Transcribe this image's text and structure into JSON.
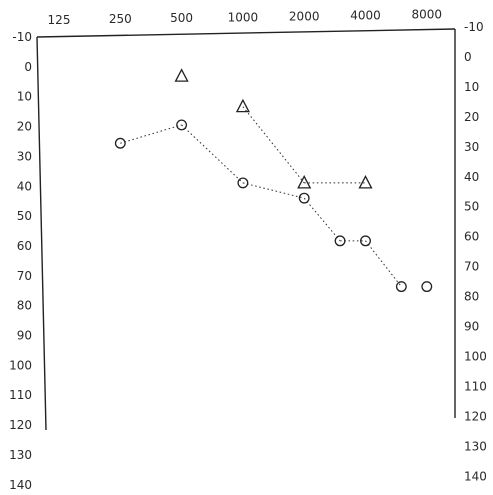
{
  "chart_data": {
    "type": "scatter",
    "title": "",
    "xlabel": "",
    "ylabel": "",
    "x_scale": "log",
    "x_ticks": [
      125,
      250,
      500,
      1000,
      2000,
      4000,
      8000
    ],
    "y_ticks": [
      -10,
      0,
      10,
      20,
      30,
      40,
      50,
      60,
      70,
      80,
      90,
      100,
      110,
      120,
      130,
      140
    ],
    "y_inverted": true,
    "grid": false,
    "series": [
      {
        "marker": "circle",
        "points": [
          {
            "x": 250,
            "y": 25
          },
          {
            "x": 500,
            "y": 19
          },
          {
            "x": 1000,
            "y": 38
          },
          {
            "x": 2000,
            "y": 43
          },
          {
            "x": 3000,
            "y": 57
          },
          {
            "x": 4000,
            "y": 57
          },
          {
            "x": 6000,
            "y": 72
          },
          {
            "x": 8000,
            "y": 72
          }
        ],
        "connections": [
          [
            0,
            1
          ],
          [
            1,
            2
          ],
          [
            2,
            3
          ],
          [
            3,
            4
          ],
          [
            4,
            5
          ],
          [
            5,
            6
          ]
        ]
      },
      {
        "marker": "triangle",
        "points": [
          {
            "x": 500,
            "y": 3
          },
          {
            "x": 1000,
            "y": 13
          },
          {
            "x": 2000,
            "y": 38
          },
          {
            "x": 4000,
            "y": 38
          }
        ],
        "connections": [
          [
            1,
            2
          ],
          [
            2,
            3
          ]
        ]
      }
    ]
  }
}
